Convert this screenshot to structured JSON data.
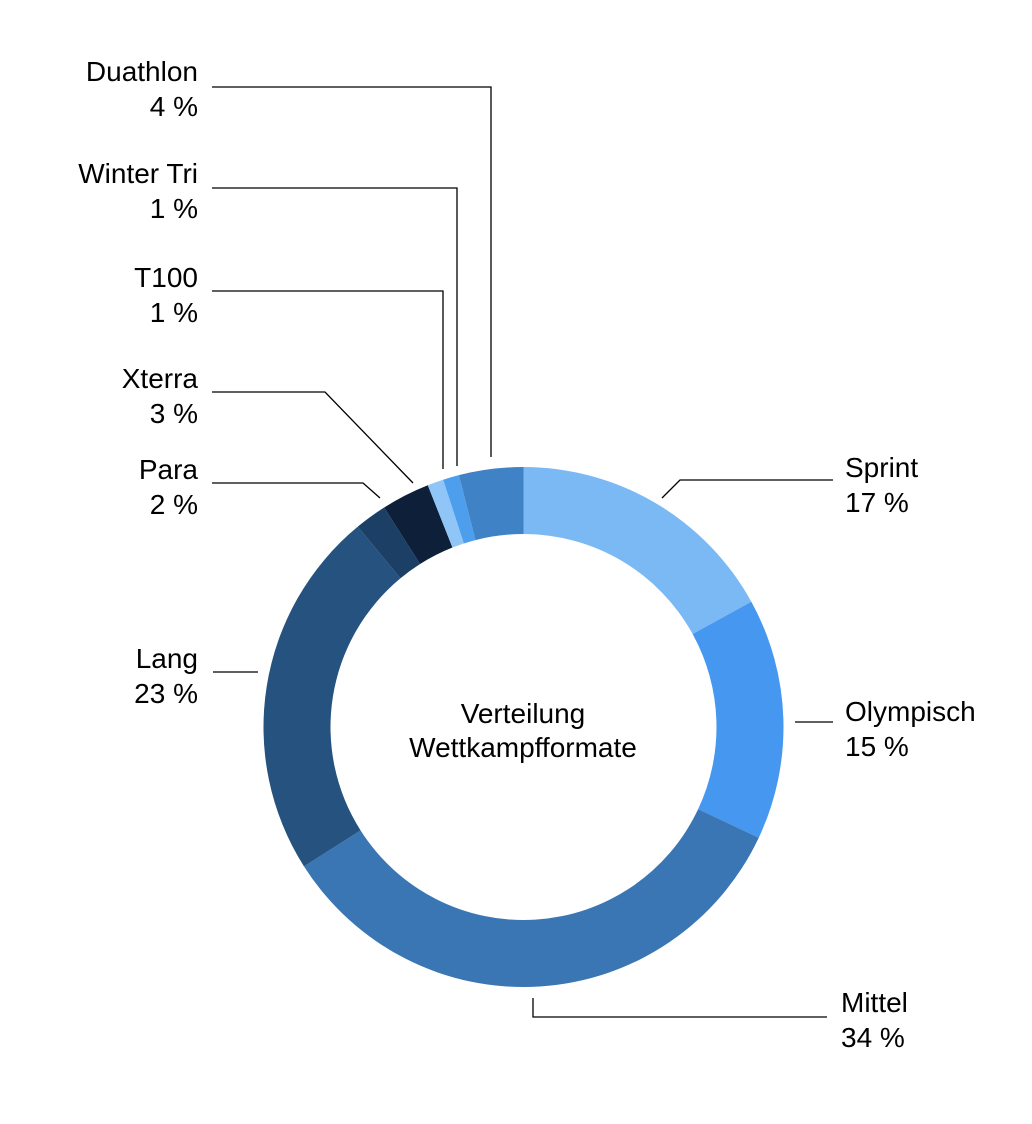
{
  "chart_data": {
    "type": "pie",
    "variant": "donut",
    "title": "Verteilung Wettkampfformate",
    "title_lines": [
      "Verteilung",
      "Wettkampfformate"
    ],
    "unit": "%",
    "direction": "clockwise",
    "start_angle_deg": 0,
    "legend_position": "outside-callout-labels",
    "grid": false,
    "background": "#ffffff",
    "label_color": "#000000",
    "leader_line_color": "#000000",
    "categories": [
      "Sprint",
      "Olympisch",
      "Mittel",
      "Lang",
      "Para",
      "Xterra",
      "T100",
      "Winter Tri",
      "Duathlon"
    ],
    "values": [
      17,
      15,
      34,
      23,
      2,
      3,
      1,
      1,
      4
    ],
    "segments": [
      {
        "label": "Sprint",
        "value": 17,
        "pct_text": "17 %",
        "color": "#7bb9f5"
      },
      {
        "label": "Olympisch",
        "value": 15,
        "pct_text": "15 %",
        "color": "#4597f0"
      },
      {
        "label": "Mittel",
        "value": 34,
        "pct_text": "34 %",
        "color": "#3a76b4"
      },
      {
        "label": "Lang",
        "value": 23,
        "pct_text": "23 %",
        "color": "#25527e"
      },
      {
        "label": "Para",
        "value": 2,
        "pct_text": "2 %",
        "color": "#1c3f66"
      },
      {
        "label": "Xterra",
        "value": 3,
        "pct_text": "3 %",
        "color": "#0e1f3a"
      },
      {
        "label": "T100",
        "value": 1,
        "pct_text": "1 %",
        "color": "#8fc6f7"
      },
      {
        "label": "Winter Tri",
        "value": 1,
        "pct_text": "1 %",
        "color": "#4d9fee"
      },
      {
        "label": "Duathlon",
        "value": 4,
        "pct_text": "4 %",
        "color": "#3f82c6"
      }
    ]
  }
}
